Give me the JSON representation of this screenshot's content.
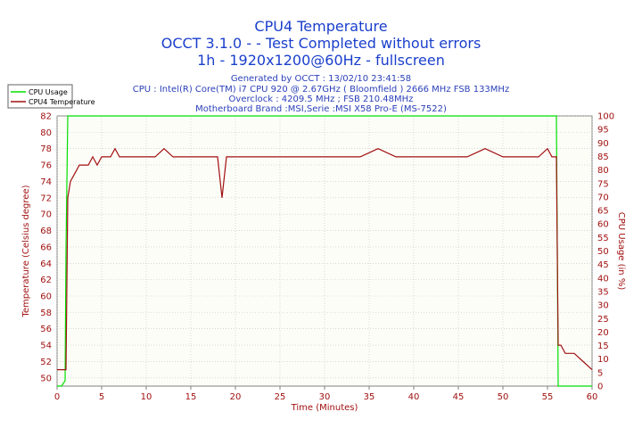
{
  "header": {
    "title": "CPU4 Temperature",
    "subtitle": "OCCT 3.1.0 -  - Test Completed without errors",
    "subtitle2": "1h - 1920x1200@60Hz - fullscreen"
  },
  "info": {
    "generated": "Generated by OCCT : 13/02/10 23:41:58",
    "cpu": "CPU : Intel(R) Core(TM) i7 CPU 920 @ 2.67GHz ( Bloomfield ) 2666 MHz FSB 133MHz",
    "overclock": "Overclock : 4209.5 MHz ; FSB 210.48MHz",
    "motherboard": "Motherboard Brand :MSI,Serie :MSI X58 Pro-E (MS-7522)"
  },
  "colors": {
    "cpu_usage": "#00e000",
    "temperature": "#a01010",
    "axis_text": "#a01010",
    "grid": "#c0c0c0"
  },
  "chart_data": {
    "type": "line",
    "title": "CPU4 Temperature",
    "xlabel": "Time (Minutes)",
    "ylabel": "Temperature (Celsius degree)",
    "y2label": "CPU Usage (in %)",
    "xlim": [
      0,
      60
    ],
    "ylim": [
      49,
      82
    ],
    "y2lim": [
      0,
      100
    ],
    "x_ticks": [
      0,
      5,
      10,
      15,
      20,
      25,
      30,
      35,
      40,
      45,
      50,
      55,
      60
    ],
    "y_ticks": [
      50,
      52,
      54,
      56,
      58,
      60,
      62,
      64,
      66,
      68,
      70,
      72,
      74,
      76,
      78,
      80,
      82
    ],
    "y2_ticks": [
      0,
      5,
      10,
      15,
      20,
      25,
      30,
      35,
      40,
      45,
      50,
      55,
      60,
      65,
      70,
      75,
      80,
      85,
      90,
      95,
      100
    ],
    "legend": [
      "CPU Usage",
      "CPU4 Temperature"
    ],
    "legend_position": "top-left",
    "series": [
      {
        "name": "CPU Usage",
        "axis": "right",
        "x": [
          0,
          0.5,
          0.9,
          1.0,
          1.2,
          2,
          3,
          4,
          5,
          6,
          7,
          8,
          9,
          10,
          12,
          14,
          16,
          18,
          18.5,
          20,
          22,
          24,
          26,
          28,
          29,
          30,
          32,
          34,
          36,
          38,
          40,
          42,
          44,
          46,
          48,
          50,
          52,
          54,
          55,
          55.5,
          56,
          56.2,
          57,
          58,
          59,
          60
        ],
        "values": [
          0,
          0,
          2,
          50,
          100,
          100,
          100,
          100,
          100,
          100,
          100,
          100,
          100,
          100,
          100,
          100,
          100,
          100,
          100,
          100,
          100,
          100,
          100,
          100,
          100,
          100,
          100,
          100,
          100,
          100,
          100,
          100,
          100,
          100,
          100,
          100,
          100,
          100,
          100,
          100,
          100,
          0,
          0,
          0,
          0,
          0
        ]
      },
      {
        "name": "CPU4 Temperature",
        "axis": "left",
        "x": [
          0,
          0.5,
          1.0,
          1.2,
          1.5,
          2,
          2.5,
          3,
          3.5,
          4,
          4.5,
          5,
          5.5,
          6,
          6.5,
          7,
          8,
          9,
          10,
          11,
          12,
          13,
          14,
          15,
          16,
          17,
          18,
          18.5,
          19,
          20,
          22,
          24,
          26,
          28,
          29,
          30,
          32,
          34,
          36,
          38,
          40,
          42,
          44,
          46,
          48,
          50,
          52,
          54,
          55,
          55.5,
          56,
          56.2,
          56.5,
          57,
          58,
          59,
          60
        ],
        "values": [
          51,
          51,
          51,
          72,
          74,
          75,
          76,
          76,
          76,
          77,
          76,
          77,
          77,
          77,
          78,
          77,
          77,
          77,
          77,
          77,
          78,
          77,
          77,
          77,
          77,
          77,
          77,
          72,
          77,
          77,
          77,
          77,
          77,
          77,
          77,
          77,
          77,
          77,
          78,
          77,
          77,
          77,
          77,
          77,
          78,
          77,
          77,
          77,
          78,
          77,
          77,
          54,
          54,
          53,
          53,
          52,
          51
        ]
      }
    ]
  }
}
